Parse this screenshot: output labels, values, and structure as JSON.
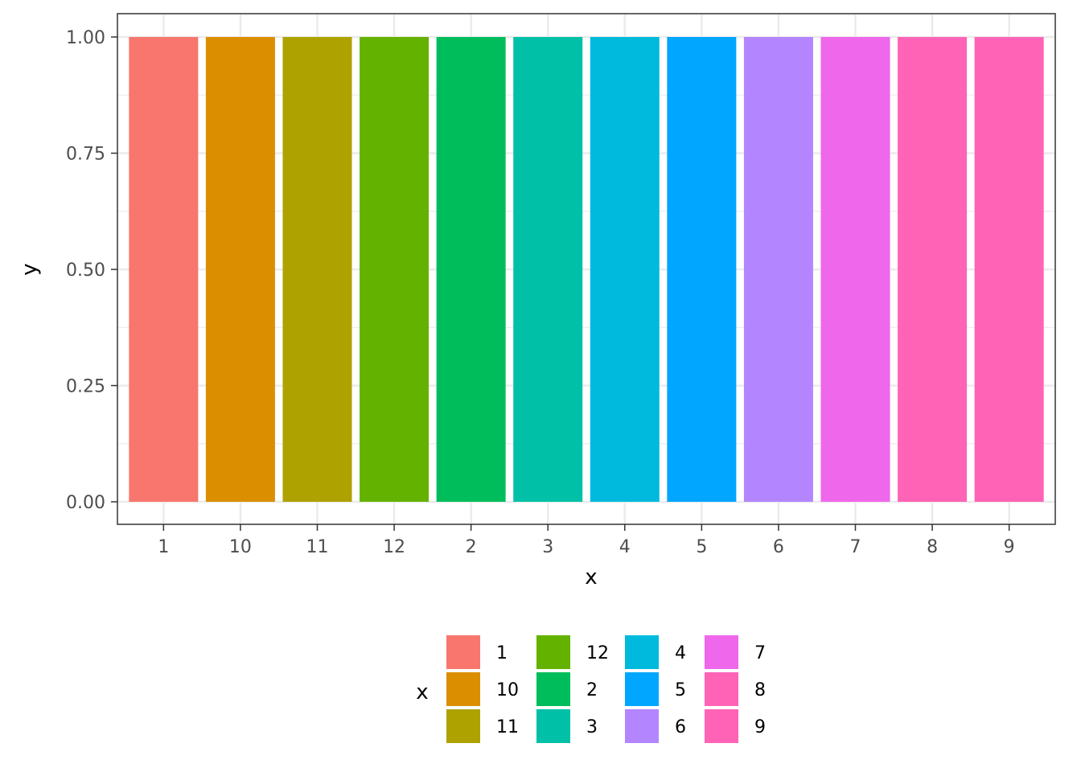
{
  "chart_data": {
    "type": "bar",
    "categories": [
      "1",
      "10",
      "11",
      "12",
      "2",
      "3",
      "4",
      "5",
      "6",
      "7",
      "8",
      "9"
    ],
    "values": [
      1,
      1,
      1,
      1,
      1,
      1,
      1,
      1,
      1,
      1,
      1,
      1
    ],
    "colors": [
      "#F8766D",
      "#DB8E00",
      "#AEA200",
      "#64B200",
      "#00BD5C",
      "#00C1A7",
      "#00BADE",
      "#00A6FF",
      "#B385FF",
      "#EF67EB",
      "#FF63B6",
      "#FF63B6"
    ],
    "xlabel": "x",
    "ylabel": "y",
    "ylim": [
      0,
      1
    ],
    "yticks": [
      "0.00",
      "0.25",
      "0.50",
      "0.75",
      "1.00"
    ],
    "ytick_values": [
      0,
      0.25,
      0.5,
      0.75,
      1
    ],
    "grid": true,
    "legend": {
      "title": "x",
      "position": "bottom",
      "entries": [
        "1",
        "10",
        "11",
        "12",
        "2",
        "3",
        "4",
        "5",
        "6",
        "7",
        "8",
        "9"
      ]
    }
  }
}
